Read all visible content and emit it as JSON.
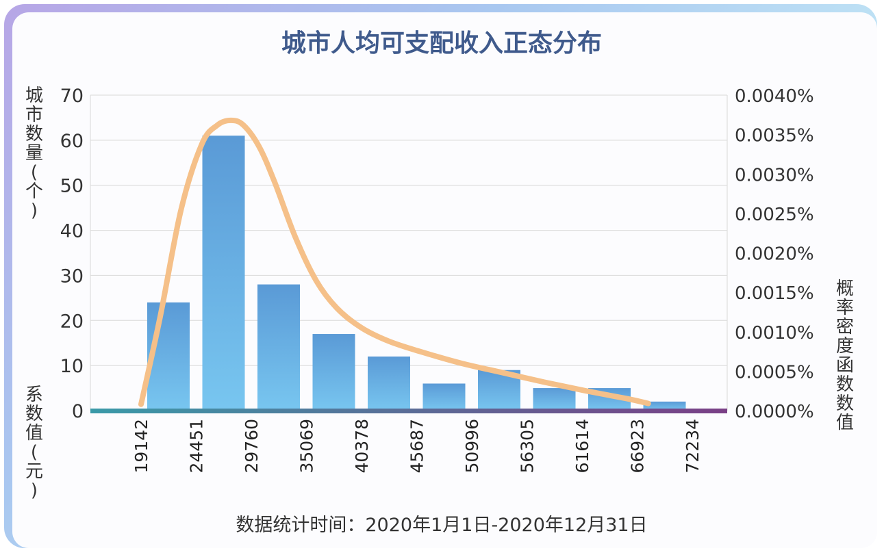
{
  "chart_data": {
    "type": "bar",
    "title": "城市人均可支配收入正态分布",
    "footnote": "数据统计时间：2020年1月1日-2020年12月31日",
    "ylabel": "城市数量(个)",
    "xlabel": "系数值(元)",
    "y2label": "概率密度函数数值",
    "categories": [
      "19142",
      "24451",
      "29760",
      "35069",
      "40378",
      "45687",
      "50996",
      "56305",
      "61614",
      "66923",
      "72234"
    ],
    "series": [
      {
        "values": [
          24,
          61,
          28,
          17,
          12,
          6,
          9,
          5,
          5,
          2,
          0
        ]
      }
    ],
    "yticks": [
      "0",
      "10",
      "20",
      "30",
      "40",
      "50",
      "60",
      "70"
    ],
    "ylim": [
      0,
      70
    ],
    "y2ticks": [
      "0.0000%",
      "0.0005%",
      "0.0010%",
      "0.0015%",
      "0.0020%",
      "0.0025%",
      "0.0030%",
      "0.0035%",
      "0.0040%"
    ],
    "y2lim": [
      0,
      0.004
    ],
    "density_curve": {
      "x": [
        19142,
        21000,
        23000,
        25000,
        26500,
        27800,
        29000,
        30500,
        32000,
        34000,
        36000,
        38000,
        40378,
        43000,
        46000,
        50000,
        54000,
        58000,
        62000,
        66000,
        68000
      ],
      "y": [
        8e-05,
        0.0012,
        0.00255,
        0.00338,
        0.00362,
        0.00368,
        0.00362,
        0.00335,
        0.0029,
        0.0022,
        0.00165,
        0.0013,
        0.00105,
        0.00088,
        0.00075,
        0.0006,
        0.00048,
        0.00036,
        0.00025,
        0.00015,
        9e-05
      ]
    },
    "grid": true,
    "colors": {
      "bar_top": "#5a9ad6",
      "bar_bottom": "#78c6f0",
      "curve": "#f5c089",
      "baseline_start": "#3a9aa8",
      "baseline_end": "#7a3f86"
    }
  }
}
